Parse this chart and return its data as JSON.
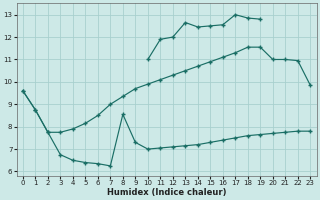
{
  "xlabel": "Humidex (Indice chaleur)",
  "background_color": "#cde9e7",
  "grid_color": "#a8d0ce",
  "line_color": "#1a6e65",
  "xlim": [
    -0.5,
    23.5
  ],
  "ylim": [
    5.8,
    13.5
  ],
  "xticks": [
    0,
    1,
    2,
    3,
    4,
    5,
    6,
    7,
    8,
    9,
    10,
    11,
    12,
    13,
    14,
    15,
    16,
    17,
    18,
    19,
    20,
    21,
    22,
    23
  ],
  "yticks": [
    6,
    7,
    8,
    9,
    10,
    11,
    12,
    13
  ],
  "curve_top_x": [
    10,
    11,
    12,
    13,
    14,
    15,
    16,
    17,
    18,
    19
  ],
  "curve_top_y": [
    11.0,
    11.9,
    12.0,
    12.65,
    12.45,
    12.5,
    12.55,
    13.0,
    12.85,
    12.8
  ],
  "curve_mid_x": [
    0,
    1,
    2,
    3,
    4,
    5,
    6,
    7,
    8,
    9,
    10,
    11,
    12,
    13,
    14,
    15,
    16,
    17,
    18,
    19,
    20,
    21,
    22,
    23
  ],
  "curve_mid_y": [
    9.6,
    8.75,
    7.75,
    7.75,
    7.9,
    8.15,
    8.5,
    9.0,
    9.35,
    9.7,
    9.9,
    10.1,
    10.3,
    10.5,
    10.7,
    10.9,
    11.1,
    11.3,
    11.55,
    11.55,
    11.0,
    11.0,
    10.95,
    9.85
  ],
  "curve_bot_x": [
    0,
    1,
    2,
    3,
    4,
    5,
    6,
    7,
    8,
    9,
    10,
    11,
    12,
    13,
    14,
    15,
    16,
    17,
    18,
    19,
    20,
    21,
    22,
    23
  ],
  "curve_bot_y": [
    9.6,
    8.75,
    7.75,
    6.75,
    6.5,
    6.4,
    6.35,
    6.25,
    8.55,
    7.3,
    7.0,
    7.05,
    7.1,
    7.15,
    7.2,
    7.3,
    7.4,
    7.5,
    7.6,
    7.65,
    7.7,
    7.75,
    7.8,
    7.8
  ]
}
